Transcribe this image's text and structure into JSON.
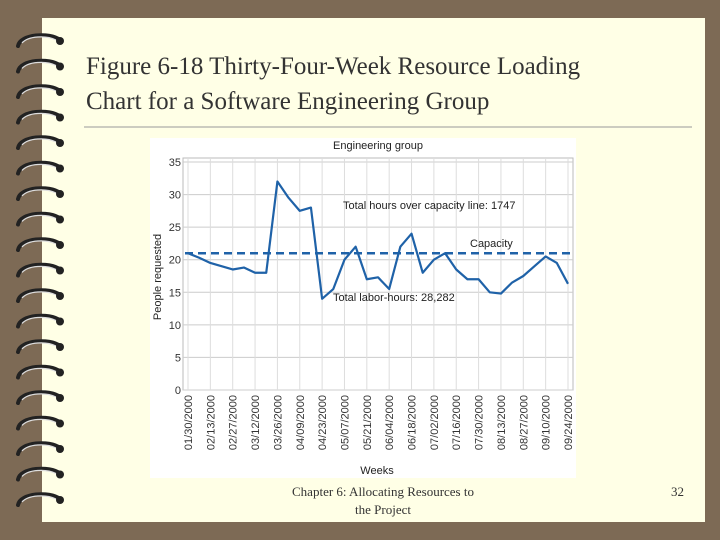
{
  "slide": {
    "title_lines": [
      "Figure 6-18 Thirty-Four-Week Resource Loading",
      "Chart for a Software Engineering Group"
    ],
    "footer_lines": [
      "Chapter 6: Allocating Resources to",
      "the Project"
    ],
    "page_number": "32"
  },
  "chart_data": {
    "type": "line",
    "title": "Engineering group",
    "x_label": "Weeks",
    "y_label": "People requested",
    "categories": [
      "01/30/2000",
      null,
      "02/13/2000",
      null,
      "02/27/2000",
      null,
      "03/12/2000",
      null,
      "03/26/2000",
      null,
      "04/09/2000",
      null,
      "04/23/2000",
      null,
      "05/07/2000",
      null,
      "05/21/2000",
      null,
      "06/04/2000",
      null,
      "06/18/2000",
      null,
      "07/02/2000",
      null,
      "07/16/2000",
      null,
      "07/30/2000",
      null,
      "08/13/2000",
      null,
      "08/27/2000",
      null,
      "09/10/2000",
      null,
      "09/24/2000"
    ],
    "series": [
      {
        "name": "Engineering group",
        "color": "#1f62a8",
        "values": [
          21,
          20.3,
          19.5,
          19,
          18.5,
          18.8,
          18,
          18,
          32,
          29.5,
          27.5,
          28,
          14,
          15.5,
          20,
          22,
          17,
          17.3,
          15.5,
          22,
          24,
          18,
          20,
          21,
          18.5,
          17,
          17,
          15,
          14.8,
          16.5,
          17.5,
          19,
          20.5,
          19.5,
          16.3
        ]
      }
    ],
    "capacity": {
      "label": "Capacity",
      "value": 21,
      "color": "#1f62a8"
    },
    "annotations": [
      "Total hours over capacity line: 1747",
      "Total labor-hours: 28,282"
    ],
    "ylim": [
      0,
      35
    ],
    "yticks": [
      0,
      5,
      10,
      15,
      20,
      25,
      30,
      35
    ],
    "grid": true
  }
}
